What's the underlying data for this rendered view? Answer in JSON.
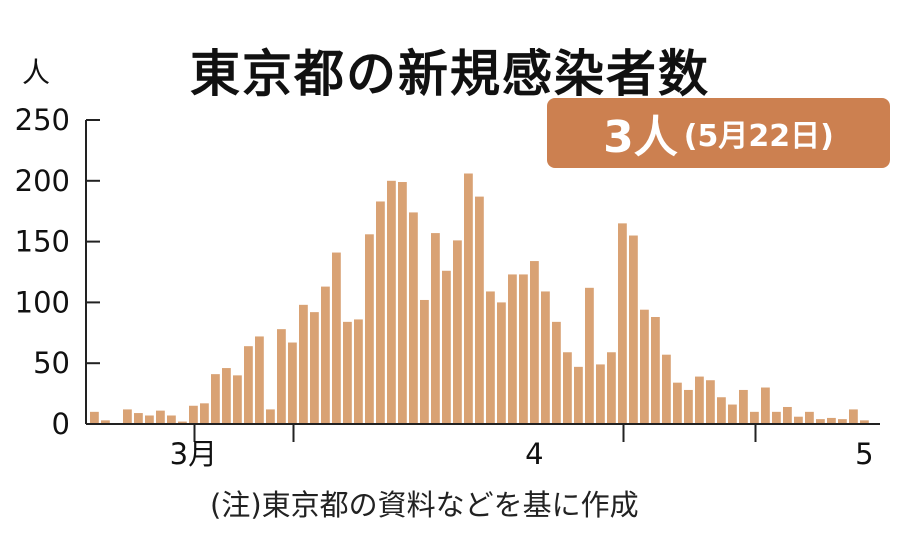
{
  "colors": {
    "bar": "#D9A274",
    "badge": "#CC8050",
    "axis": "#222222"
  },
  "chart_data": {
    "type": "bar",
    "title": "東京都の新規感染者数",
    "ylabel": "人",
    "ylim": [
      0,
      250
    ],
    "y_ticks": [
      0,
      50,
      100,
      150,
      200,
      250
    ],
    "grid": false,
    "x_tick_labels": [
      {
        "label": "3月",
        "index": 9
      },
      {
        "label": "4",
        "index": 40
      },
      {
        "label": "5",
        "index": 70
      }
    ],
    "x_tick_marks_at": [
      9.5,
      18.5,
      48.5,
      60.5
    ],
    "values": [
      10,
      3,
      0,
      12,
      9,
      7,
      11,
      7,
      2,
      15,
      17,
      41,
      46,
      40,
      64,
      72,
      12,
      78,
      67,
      98,
      92,
      113,
      141,
      84,
      86,
      156,
      183,
      200,
      199,
      174,
      102,
      157,
      126,
      151,
      206,
      187,
      109,
      100,
      123,
      123,
      134,
      109,
      84,
      59,
      47,
      112,
      49,
      59,
      165,
      155,
      94,
      88,
      57,
      34,
      28,
      39,
      36,
      22,
      16,
      28,
      10,
      30,
      10,
      14,
      6,
      10,
      4,
      5,
      4,
      12,
      3
    ],
    "annotation": {
      "value": "3人",
      "date": "(5月22日)"
    }
  },
  "footnote": "(注)東京都の資料などを基に作成"
}
